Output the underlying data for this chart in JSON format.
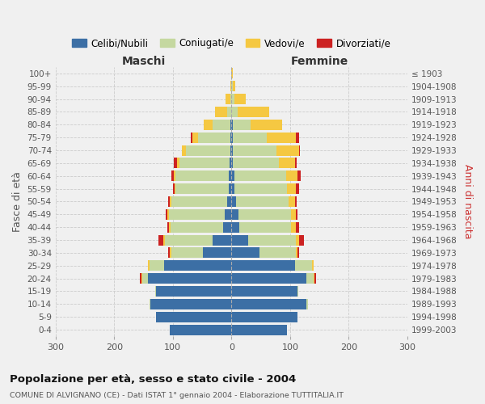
{
  "age_groups": [
    "0-4",
    "5-9",
    "10-14",
    "15-19",
    "20-24",
    "25-29",
    "30-34",
    "35-39",
    "40-44",
    "45-49",
    "50-54",
    "55-59",
    "60-64",
    "65-69",
    "70-74",
    "75-79",
    "80-84",
    "85-89",
    "90-94",
    "95-99",
    "100+"
  ],
  "birth_years": [
    "1999-2003",
    "1994-1998",
    "1989-1993",
    "1984-1988",
    "1979-1983",
    "1974-1978",
    "1969-1973",
    "1964-1968",
    "1959-1963",
    "1954-1958",
    "1949-1953",
    "1944-1948",
    "1939-1943",
    "1934-1938",
    "1929-1933",
    "1924-1928",
    "1919-1923",
    "1914-1918",
    "1909-1913",
    "1904-1908",
    "≤ 1903"
  ],
  "colors": {
    "celibi": "#3c6fa5",
    "coniugati": "#c5d8a0",
    "vedovi": "#f5c842",
    "divorziati": "#cc2222"
  },
  "males": {
    "celibi": [
      105,
      128,
      138,
      128,
      142,
      115,
      48,
      32,
      14,
      12,
      8,
      5,
      5,
      3,
      2,
      2,
      2,
      0,
      0,
      0,
      0
    ],
    "coniugati": [
      0,
      0,
      2,
      2,
      10,
      25,
      55,
      82,
      90,
      95,
      95,
      90,
      90,
      85,
      75,
      55,
      30,
      8,
      2,
      0,
      0
    ],
    "vedovi": [
      0,
      0,
      0,
      0,
      2,
      2,
      2,
      2,
      2,
      2,
      2,
      2,
      3,
      5,
      8,
      10,
      15,
      20,
      8,
      2,
      0
    ],
    "divorziati": [
      0,
      0,
      0,
      0,
      2,
      0,
      3,
      8,
      3,
      3,
      3,
      3,
      5,
      5,
      0,
      3,
      0,
      0,
      0,
      0,
      0
    ]
  },
  "females": {
    "celibi": [
      95,
      112,
      128,
      112,
      128,
      108,
      48,
      28,
      14,
      12,
      8,
      5,
      5,
      3,
      2,
      2,
      2,
      0,
      0,
      0,
      0
    ],
    "coniugati": [
      0,
      0,
      2,
      2,
      12,
      30,
      62,
      82,
      88,
      90,
      90,
      90,
      88,
      78,
      75,
      58,
      30,
      10,
      5,
      2,
      0
    ],
    "vedovi": [
      0,
      0,
      0,
      0,
      2,
      2,
      3,
      5,
      8,
      8,
      10,
      15,
      20,
      28,
      38,
      50,
      55,
      55,
      20,
      5,
      2
    ],
    "divorziati": [
      0,
      0,
      0,
      0,
      2,
      0,
      3,
      8,
      5,
      3,
      3,
      5,
      5,
      2,
      2,
      5,
      0,
      0,
      0,
      0,
      0
    ]
  },
  "title": "Popolazione per età, sesso e stato civile - 2004",
  "subtitle": "COMUNE DI ALVIGNANO (CE) - Dati ISTAT 1° gennaio 2004 - Elaborazione TUTTITALIA.IT",
  "xlabel_left": "Maschi",
  "xlabel_right": "Femmine",
  "ylabel_left": "Fasce di età",
  "ylabel_right": "Anni di nascita",
  "xlim": 300,
  "legend_labels": [
    "Celibi/Nubili",
    "Coniugati/e",
    "Vedovi/e",
    "Divorziati/e"
  ],
  "background_color": "#f0f0f0"
}
